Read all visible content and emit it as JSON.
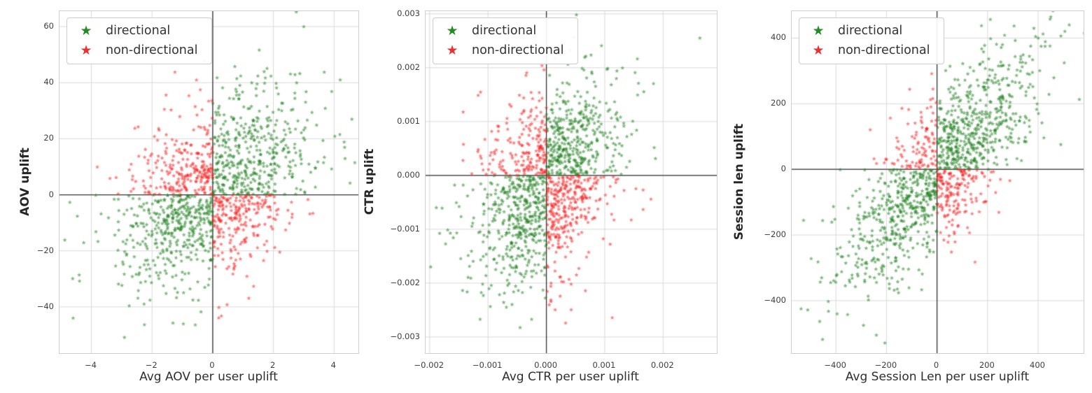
{
  "figure": {
    "background": "#ffffff"
  },
  "style": {
    "grid_color": "#d9d9d9",
    "spine_color": "#cfcfcf",
    "zero_line_color": "#333333",
    "tick_label_color": "#3d3d3d",
    "axis_label_color": "#2e2e2e"
  },
  "legend": {
    "items": [
      {
        "label": "directional",
        "color": "#238b23",
        "marker": "star"
      },
      {
        "label": "non-directional",
        "color": "#e83232",
        "marker": "star"
      }
    ],
    "position": "upper-left"
  },
  "chart_data": {
    "type": "scatter",
    "description": "Three side-by-side scatter plots of per-metric uplift vs avg per-user uplift. Points where x and y share the same sign are green (directional); opposite signs are red (non-directional). Black reference lines at x=0 and y=0; light gray grid on white background. Dense correlated Gaussian clouds are synthesized from the generator parameters below (seeded), matching the depicted distributions.",
    "point_classes": {
      "directional": {
        "rule": "x*y > 0",
        "color": "#1f7f1f"
      },
      "non_directional": {
        "rule": "x*y < 0",
        "color": "#f22020"
      }
    },
    "charts": [
      {
        "xlabel": "Avg AOV per user uplift",
        "ylabel": "AOV uplift",
        "xlim": [
          -5.05,
          4.8
        ],
        "ylim": [
          -56.5,
          65.5
        ],
        "xticks": [
          {
            "v": -4,
            "label": "−4"
          },
          {
            "v": -2,
            "label": "−2"
          },
          {
            "v": 0,
            "label": "0"
          },
          {
            "v": 2,
            "label": "2"
          },
          {
            "v": 4,
            "label": "4"
          }
        ],
        "yticks": [
          {
            "v": 60,
            "label": "60"
          },
          {
            "v": 40,
            "label": "40"
          },
          {
            "v": 20,
            "label": "20"
          },
          {
            "v": 0,
            "label": "0"
          },
          {
            "v": -20,
            "label": "−20"
          },
          {
            "v": -40,
            "label": "−40"
          }
        ],
        "marker": "star",
        "alpha": 0.55,
        "zero_lines": true,
        "generator": {
          "seed": 7,
          "n": 1350,
          "cx": 0.05,
          "cy": 2,
          "sx": 1.5,
          "sy": 16.5,
          "rho": 0.45
        },
        "extra_points": [
          [
            3.0,
            60
          ],
          [
            -4.6,
            -44
          ],
          [
            4.2,
            41
          ]
        ]
      },
      {
        "xlabel": "Avg CTR per user uplift",
        "ylabel": "CTR uplift",
        "xlim": [
          -0.00207,
          0.00292
        ],
        "ylim": [
          -0.0033,
          0.00305
        ],
        "xticks": [
          {
            "v": -0.002,
            "label": "−0.002"
          },
          {
            "v": -0.001,
            "label": "−0.001"
          },
          {
            "v": 0,
            "label": "0.000"
          },
          {
            "v": 0.001,
            "label": "0.001"
          },
          {
            "v": 0.002,
            "label": "0.002"
          }
        ],
        "yticks": [
          {
            "v": 0.003,
            "label": "0.003"
          },
          {
            "v": 0.002,
            "label": "0.002"
          },
          {
            "v": 0.001,
            "label": "0.001"
          },
          {
            "v": 0,
            "label": "0.000"
          },
          {
            "v": -0.001,
            "label": "−0.001"
          },
          {
            "v": -0.002,
            "label": "−0.002"
          },
          {
            "v": -0.003,
            "label": "−0.003"
          }
        ],
        "marker": "star",
        "alpha": 0.55,
        "zero_lines": true,
        "generator": {
          "seed": 13,
          "n": 1350,
          "cx": 4e-05,
          "cy": -0.00015,
          "sx": 0.00063,
          "sy": 0.00093,
          "rho": 0.42
        },
        "extra_points": [
          [
            0.00263,
            0.00255
          ]
        ]
      },
      {
        "xlabel": "Avg Session Len per user uplift",
        "ylabel": "Session len uplift",
        "xlim": [
          -575,
          580
        ],
        "ylim": [
          -560,
          482
        ],
        "xticks": [
          {
            "v": -400,
            "label": "−400"
          },
          {
            "v": -200,
            "label": "−200"
          },
          {
            "v": 0,
            "label": "0"
          },
          {
            "v": 200,
            "label": "200"
          },
          {
            "v": 400,
            "label": "400"
          }
        ],
        "yticks": [
          {
            "v": 400,
            "label": "400"
          },
          {
            "v": 200,
            "label": "200"
          },
          {
            "v": 0,
            "label": "0"
          },
          {
            "v": -200,
            "label": "−200"
          },
          {
            "v": -400,
            "label": "−400"
          }
        ],
        "marker": "star",
        "alpha": 0.55,
        "zero_lines": true,
        "generator": {
          "seed": 21,
          "n": 1300,
          "cx": 15,
          "cy": 5,
          "sx": 192,
          "sy": 180,
          "rho": 0.78
        },
        "extra_points": [
          [
            -240,
            -505
          ],
          [
            305,
            437
          ]
        ]
      }
    ]
  }
}
